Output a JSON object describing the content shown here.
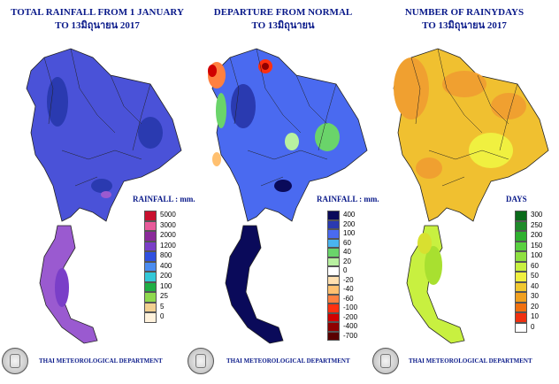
{
  "panels": [
    {
      "id": "rain",
      "title1": "TOTAL RAINFALL FROM 1 JANUARY",
      "title2": "TO 13มิถุนายน 2017",
      "legend_title": "RAINFALL : mm.",
      "legend_labels": [
        "5000",
        "3000",
        "2000",
        "1200",
        "800",
        "400",
        "200",
        "100",
        "25",
        "5",
        "0"
      ],
      "legend_colors": [
        "#c8102e",
        "#e85a9a",
        "#8a2a9a",
        "#7a3fc8",
        "#3050e0",
        "#4a8cf0",
        "#33c8d8",
        "#1fae44",
        "#8fd94e",
        "#f2d090",
        "#fff2dc"
      ],
      "map_fill": [
        "#4a52d8",
        "#5a78e8",
        "#9a5ad0",
        "#2a3ab0"
      ]
    },
    {
      "id": "depart",
      "title1": "DEPARTURE FROM NORMAL",
      "title2": "TO 13มิถุนายน",
      "legend_title": "RAINFALL : mm.",
      "legend_labels": [
        "400",
        "200",
        "100",
        "60",
        "40",
        "20",
        "0",
        "-20",
        "-40",
        "-60",
        "-100",
        "-200",
        "-400",
        "-700"
      ],
      "legend_colors": [
        "#0a0a5a",
        "#2a3ab0",
        "#4a6af0",
        "#4ab4f0",
        "#6ad46a",
        "#b8f0a0",
        "#ffffff",
        "#ffe0b0",
        "#ffc070",
        "#ff8040",
        "#ff3010",
        "#d00000",
        "#900000",
        "#5a0000"
      ],
      "map_fill": [
        "#2a3ab0",
        "#4a6af0",
        "#0a0a5a",
        "#6ad46a"
      ]
    },
    {
      "id": "days",
      "title1": "NUMBER OF RAINYDAYS",
      "title2": "TO 13มิถุนายน 2017",
      "legend_title": "DAYS",
      "legend_labels": [
        "300",
        "250",
        "200",
        "150",
        "100",
        "60",
        "50",
        "40",
        "30",
        "20",
        "10",
        "0"
      ],
      "legend_colors": [
        "#0a6a1a",
        "#1f8a2a",
        "#2fb02f",
        "#5ad040",
        "#8fe040",
        "#c8f040",
        "#f0f040",
        "#f0c830",
        "#f0a020",
        "#f07010",
        "#f03010",
        "#ffffff"
      ],
      "map_fill": [
        "#f0a030",
        "#f0c030",
        "#d8e030",
        "#a8e030"
      ]
    }
  ],
  "footer_label": "THAI METEOROLOGICAL DEPARTMENT",
  "icons": [
    "seal-icon"
  ]
}
